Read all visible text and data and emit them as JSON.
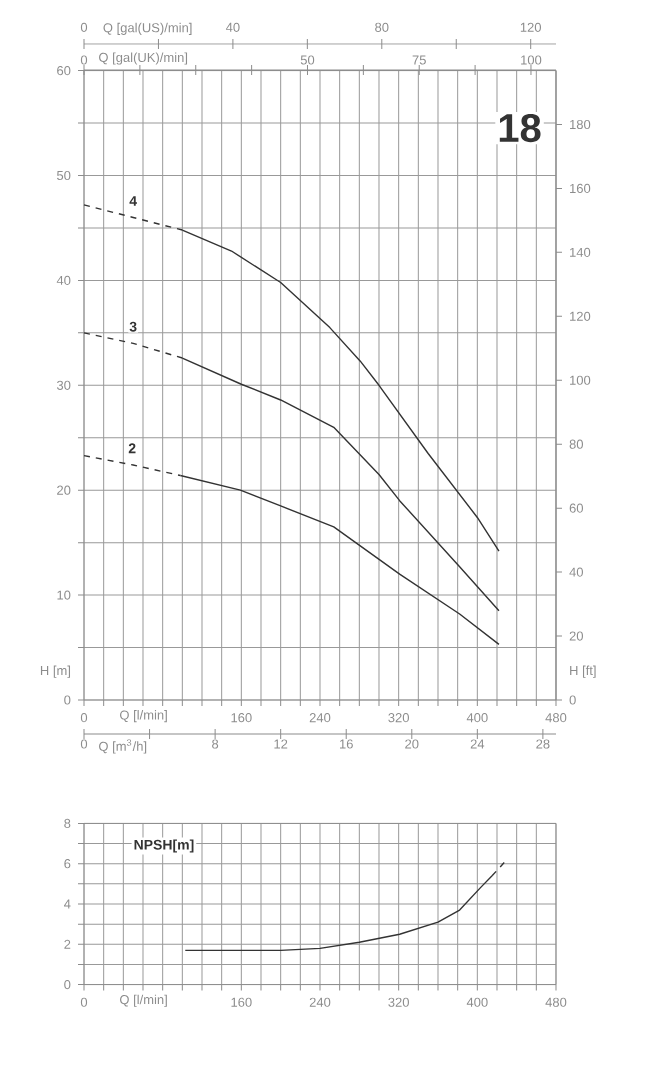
{
  "chart_data": [
    {
      "type": "line",
      "annotations": [
        "18"
      ],
      "xlabel": "Q [l/min]",
      "ylabel": "H [m]",
      "y2label": "H [ft]",
      "x2label": "Q [gal(US)/min]",
      "xlim": [
        0,
        480
      ],
      "xticks": [
        0,
        {
          "value": 20,
          "label": null
        },
        {
          "value": 40,
          "label": null
        },
        {
          "value": 60,
          "label": null
        },
        {
          "value": 80,
          "label": null
        },
        {
          "value": 100,
          "label": null
        },
        {
          "value": 120,
          "label": null
        },
        {
          "value": 140,
          "label": null
        },
        160,
        {
          "value": 180,
          "label": null
        },
        {
          "value": 200,
          "label": null
        },
        {
          "value": 220,
          "label": null
        },
        240,
        {
          "value": 260,
          "label": null
        },
        {
          "value": 280,
          "label": null
        },
        {
          "value": 300,
          "label": null
        },
        320,
        {
          "value": 340,
          "label": null
        },
        {
          "value": 360,
          "label": null
        },
        {
          "value": 380,
          "label": null
        },
        400,
        {
          "value": 420,
          "label": null
        },
        {
          "value": 440,
          "label": null
        },
        {
          "value": 460,
          "label": null
        },
        480
      ],
      "ylim": [
        0,
        60
      ],
      "yticks": [
        0,
        {
          "value": 5,
          "label": null
        },
        10,
        {
          "value": 15,
          "label": null
        },
        20,
        {
          "value": 25,
          "label": null
        },
        30,
        {
          "value": 35,
          "label": null
        },
        40,
        {
          "value": 45,
          "label": null
        },
        50,
        {
          "value": 55,
          "label": null
        },
        60
      ],
      "y2lim": [
        0,
        196.85
      ],
      "y2ticks": [
        0,
        20,
        40,
        60,
        80,
        100,
        120,
        140,
        160,
        180
      ],
      "x2lim": [
        0,
        126.8
      ],
      "x2ticks": [
        0,
        {
          "value": 20,
          "label": null
        },
        40,
        {
          "value": 60,
          "label": null
        },
        80,
        {
          "value": 100,
          "label": null
        },
        120
      ],
      "grid": true,
      "series": [
        {
          "name": "4",
          "color": "#333333",
          "line_style": "dashed",
          "x": [
            0,
            50,
            100
          ],
          "values": [
            47.2,
            46,
            44.8
          ]
        },
        {
          "color": "#333333",
          "line_style": "solid",
          "x": [
            100,
            150,
            200,
            250,
            281,
            300,
            350,
            400,
            422
          ],
          "values": [
            44.8,
            42.8,
            39.8,
            35.5,
            32.3,
            30,
            23.5,
            17.4,
            14.2
          ]
        },
        {
          "name": "3",
          "color": "#333333",
          "line_style": "dashed",
          "x": [
            0,
            50,
            100
          ],
          "values": [
            35,
            34,
            32.6
          ]
        },
        {
          "color": "#333333",
          "line_style": "solid",
          "x": [
            100,
            160,
            200,
            254,
            300,
            321,
            382,
            422
          ],
          "values": [
            32.6,
            30.1,
            28.6,
            26,
            21.5,
            19,
            12.7,
            8.5
          ]
        },
        {
          "name": "2",
          "color": "#333333",
          "line_style": "dashed",
          "x": [
            0,
            50,
            98
          ],
          "values": [
            23.3,
            22.4,
            21.4
          ]
        },
        {
          "color": "#333333",
          "line_style": "solid",
          "x": [
            98,
            159,
            200,
            254,
            321,
            382,
            422
          ],
          "values": [
            21.4,
            20,
            18.5,
            16.5,
            12,
            8.2,
            5.3
          ]
        }
      ]
    },
    {
      "type": "other",
      "annotations": [
        "0",
        "Q [gal(UK)/min]",
        "50",
        "75",
        "100"
      ]
    },
    {
      "type": "other",
      "annotations": [
        "0",
        "Q [m$^{3}$/h]",
        "8",
        "12",
        "16",
        "20",
        "24",
        "28"
      ]
    },
    {
      "type": "line",
      "xlabel": "Q [l/min]",
      "ylabel": "NPSH[m]",
      "xlim": [
        0,
        480
      ],
      "xticks": [
        0,
        {
          "value": 20,
          "label": null
        },
        {
          "value": 40,
          "label": null
        },
        {
          "value": 60,
          "label": null
        },
        {
          "value": 80,
          "label": null
        },
        {
          "value": 100,
          "label": null
        },
        {
          "value": 120,
          "label": null
        },
        {
          "value": 140,
          "label": null
        },
        160,
        {
          "value": 180,
          "label": null
        },
        {
          "value": 200,
          "label": null
        },
        {
          "value": 220,
          "label": null
        },
        240,
        {
          "value": 260,
          "label": null
        },
        {
          "value": 280,
          "label": null
        },
        {
          "value": 300,
          "label": null
        },
        320,
        {
          "value": 340,
          "label": null
        },
        {
          "value": 360,
          "label": null
        },
        {
          "value": 380,
          "label": null
        },
        400,
        {
          "value": 420,
          "label": null
        },
        {
          "value": 440,
          "label": null
        },
        {
          "value": 460,
          "label": null
        },
        480
      ],
      "ylim": [
        0,
        8
      ],
      "yticks": [
        0,
        {
          "value": 1,
          "label": null
        },
        2,
        {
          "value": 3,
          "label": null
        },
        4,
        {
          "value": 5,
          "label": null
        },
        6,
        {
          "value": 7,
          "label": null
        },
        8
      ],
      "grid": true,
      "series": [
        {
          "color": "#333333",
          "line_style": "solid",
          "x": [
            103,
            160,
            200,
            240,
            280,
            321,
            360,
            382,
            403,
            415
          ],
          "values": [
            1.7,
            1.7,
            1.7,
            1.8,
            2.1,
            2.5,
            3.1,
            3.7,
            4.8,
            5.4
          ]
        },
        {
          "color": "#333333",
          "line_style": "dashed",
          "x": [
            415,
            430
          ],
          "values": [
            5.4,
            6.2
          ]
        }
      ]
    }
  ]
}
